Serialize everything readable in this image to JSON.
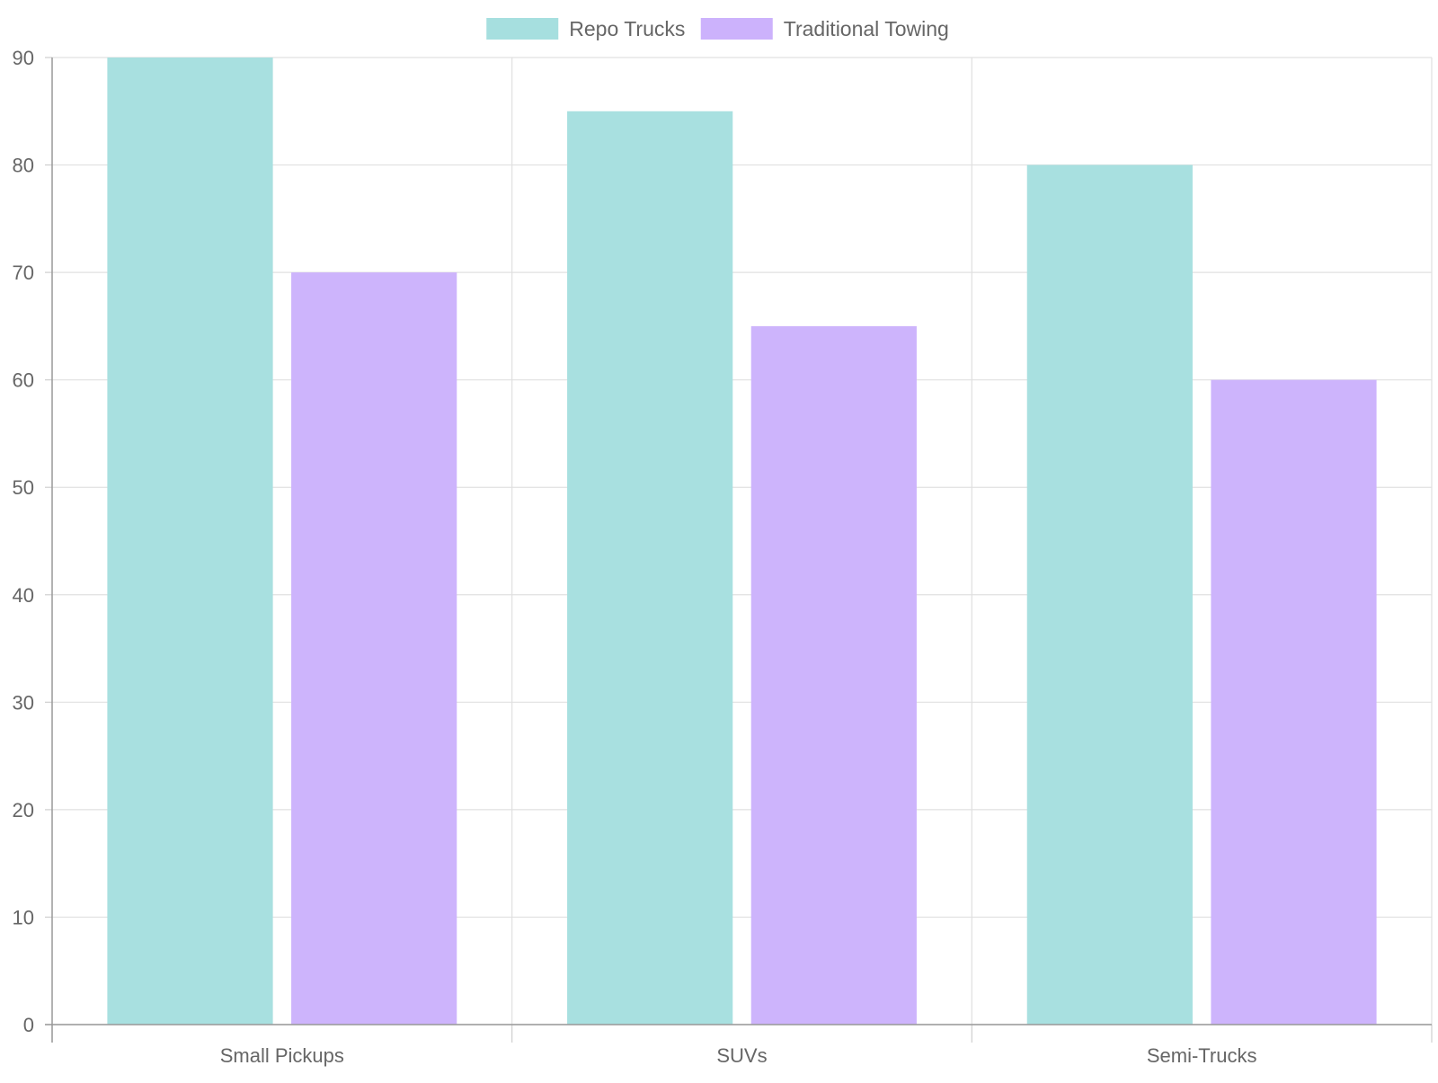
{
  "chart_data": {
    "type": "bar",
    "categories": [
      "Small Pickups",
      "SUVs",
      "Semi-Trucks"
    ],
    "series": [
      {
        "name": "Repo Trucks",
        "values": [
          90,
          85,
          80
        ],
        "color": "#a6dfdf"
      },
      {
        "name": "Traditional Towing",
        "values": [
          70,
          65,
          60
        ],
        "color": "#ccb2fc"
      }
    ],
    "title": "",
    "xlabel": "",
    "ylabel": "",
    "ylim": [
      0,
      90
    ],
    "yticks": [
      0,
      10,
      20,
      30,
      40,
      50,
      60,
      70,
      80,
      90
    ],
    "grid": true,
    "legend_position": "top-center"
  }
}
